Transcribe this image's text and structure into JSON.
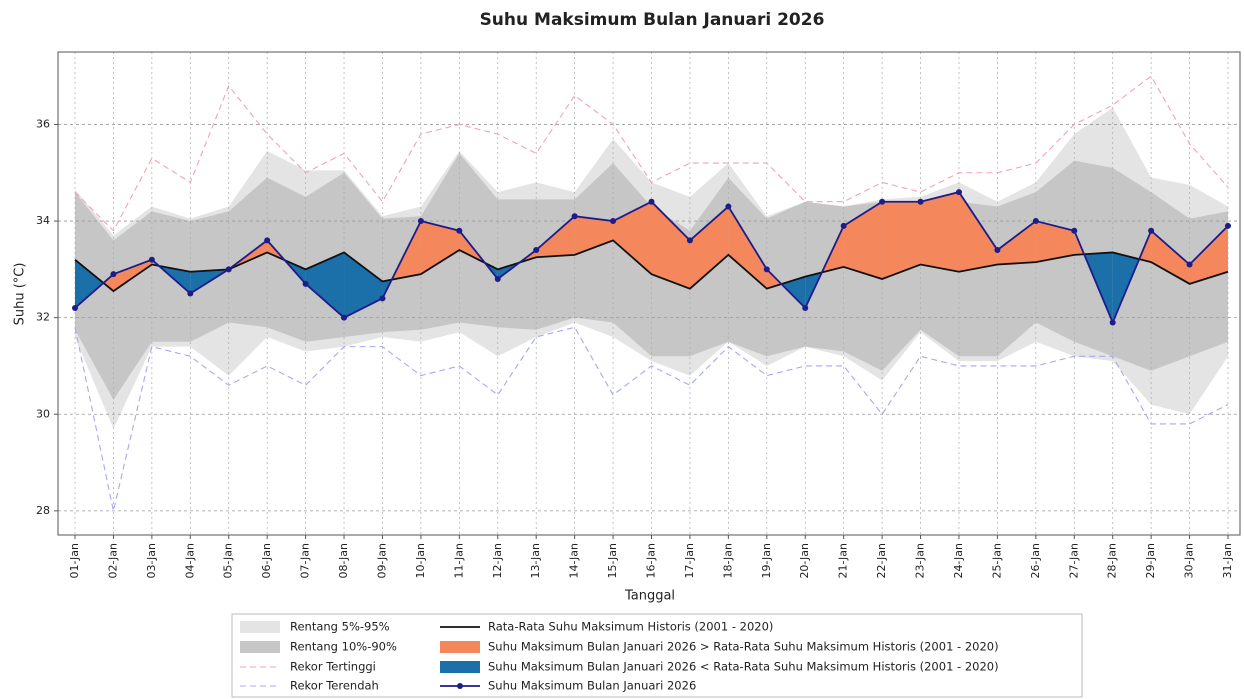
{
  "chart_data": {
    "type": "line",
    "title": "Suhu Maksimum Bulan Januari 2026",
    "x_label": "Tanggal",
    "y_label": "Suhu (°C)",
    "categories": [
      "01-Jan",
      "02-Jan",
      "03-Jan",
      "04-Jan",
      "05-Jan",
      "06-Jan",
      "07-Jan",
      "08-Jan",
      "09-Jan",
      "10-Jan",
      "11-Jan",
      "12-Jan",
      "13-Jan",
      "14-Jan",
      "15-Jan",
      "16-Jan",
      "17-Jan",
      "18-Jan",
      "19-Jan",
      "20-Jan",
      "21-Jan",
      "22-Jan",
      "23-Jan",
      "24-Jan",
      "25-Jan",
      "26-Jan",
      "27-Jan",
      "28-Jan",
      "29-Jan",
      "30-Jan",
      "31-Jan"
    ],
    "ylim": [
      27.5,
      37.5
    ],
    "yticks": [
      28,
      30,
      32,
      34,
      36
    ],
    "grid": true,
    "bands": [
      {
        "name": "Rentang 5%-95%",
        "color": "#e4e4e4",
        "upper": [
          34.65,
          33.7,
          34.3,
          34.05,
          34.3,
          35.45,
          35.05,
          35.05,
          34.1,
          34.3,
          35.45,
          34.6,
          34.8,
          34.6,
          35.7,
          34.8,
          34.5,
          35.2,
          34.1,
          34.4,
          34.3,
          34.45,
          34.5,
          34.8,
          34.4,
          34.8,
          35.8,
          36.35,
          34.9,
          34.75,
          34.3
        ],
        "lower": [
          31.6,
          29.7,
          31.4,
          31.4,
          30.8,
          31.6,
          31.3,
          31.4,
          31.6,
          31.5,
          31.7,
          31.2,
          31.6,
          31.9,
          31.6,
          31.1,
          30.8,
          31.5,
          31.0,
          31.4,
          31.2,
          30.7,
          31.7,
          31.1,
          31.1,
          31.5,
          31.2,
          31.1,
          30.2,
          30.0,
          31.2
        ]
      },
      {
        "name": "Rentang 10%-90%",
        "color": "#c6c6c6",
        "upper": [
          34.6,
          33.6,
          34.2,
          34.0,
          34.2,
          34.9,
          34.5,
          35.0,
          34.05,
          34.1,
          35.4,
          34.45,
          34.45,
          34.45,
          35.2,
          34.3,
          33.8,
          34.9,
          34.05,
          34.4,
          34.3,
          34.4,
          34.4,
          34.4,
          34.3,
          34.6,
          35.25,
          35.1,
          34.6,
          34.05,
          34.2
        ],
        "lower": [
          31.75,
          30.3,
          31.5,
          31.5,
          31.9,
          31.8,
          31.5,
          31.6,
          31.7,
          31.75,
          31.9,
          31.8,
          31.75,
          32.0,
          31.9,
          31.2,
          31.2,
          31.5,
          31.2,
          31.4,
          31.3,
          30.9,
          31.75,
          31.2,
          31.2,
          31.9,
          31.5,
          31.2,
          30.9,
          31.2,
          31.5
        ]
      }
    ],
    "series": [
      {
        "name": "Rekor Tertinggi",
        "color": "#f2a3b3",
        "dashed": true,
        "values": [
          34.6,
          33.8,
          35.3,
          34.8,
          36.8,
          35.8,
          35.0,
          35.4,
          34.4,
          35.8,
          36.0,
          35.8,
          35.4,
          36.6,
          36.0,
          34.8,
          35.2,
          35.2,
          35.2,
          34.4,
          34.4,
          34.8,
          34.6,
          35.0,
          35.0,
          35.2,
          36.0,
          36.4,
          37.0,
          35.6,
          34.7
        ]
      },
      {
        "name": "Rekor Terendah",
        "color": "#a8a8f2",
        "dashed": true,
        "values": [
          31.8,
          28.0,
          31.4,
          31.2,
          30.6,
          31.0,
          30.6,
          31.4,
          31.4,
          30.8,
          31.0,
          30.4,
          31.6,
          31.8,
          30.4,
          31.0,
          30.6,
          31.4,
          30.8,
          31.0,
          31.0,
          30.0,
          31.2,
          31.0,
          31.0,
          31.0,
          31.2,
          31.2,
          29.8,
          29.8,
          30.2
        ]
      },
      {
        "name": "Rata-Rata Suhu Maksimum Historis (2001 - 2020)",
        "color": "#111111",
        "values": [
          33.2,
          32.55,
          33.1,
          32.95,
          33.0,
          33.35,
          33.0,
          33.35,
          32.75,
          32.9,
          33.4,
          33.0,
          33.25,
          33.3,
          33.6,
          32.9,
          32.6,
          33.3,
          32.6,
          32.85,
          33.05,
          32.8,
          33.1,
          32.95,
          33.1,
          33.15,
          33.3,
          33.35,
          33.15,
          32.7,
          32.95
        ]
      },
      {
        "name": "Suhu Maksimum Bulan Januari 2026",
        "color": "#1c1c8a",
        "markers": true,
        "values": [
          32.2,
          32.9,
          33.2,
          32.5,
          33.0,
          33.6,
          32.7,
          32.0,
          32.4,
          34.0,
          33.8,
          32.8,
          33.4,
          34.1,
          34.0,
          34.4,
          33.6,
          34.3,
          33.0,
          32.2,
          33.9,
          34.4,
          34.4,
          34.6,
          33.4,
          34.0,
          33.8,
          31.9,
          33.8,
          33.1,
          33.9
        ]
      }
    ],
    "fills": [
      {
        "name": "Suhu Maksimum Bulan Januari 2026 > Rata-Rata Suhu Maksimum Historis (2001 - 2020)",
        "color": "#f4875c"
      },
      {
        "name": "Suhu Maksimum Bulan Januari 2026 < Rata-Rata Suhu Maksimum Historis (2001 - 2020)",
        "color": "#1b70aa"
      }
    ]
  }
}
